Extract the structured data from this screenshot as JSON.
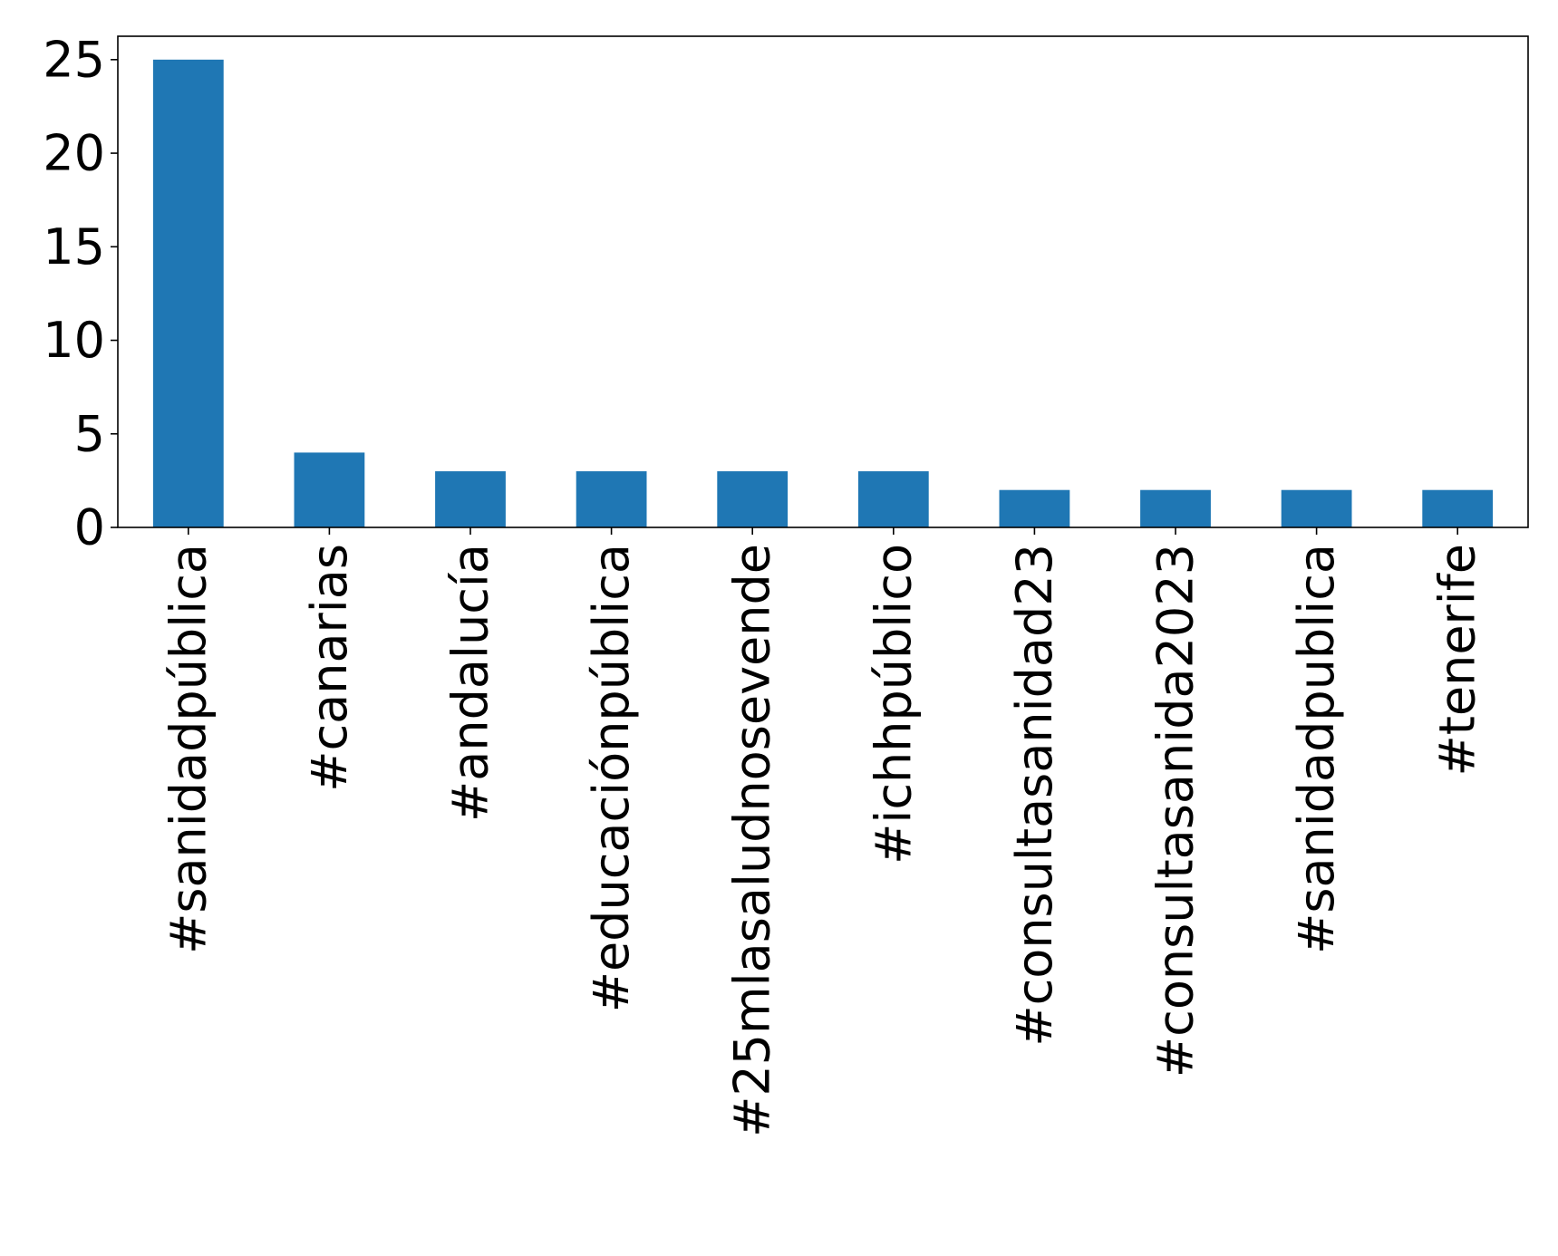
{
  "colors": {
    "bar": "#1f77b4",
    "axis": "#000000",
    "background": "#ffffff"
  },
  "chart_data": {
    "type": "bar",
    "title": "",
    "xlabel": "",
    "ylabel": "",
    "categories": [
      "#sanidadpública",
      "#canarias",
      "#andalucía",
      "#educaciónpública",
      "#25mlasaludnosevende",
      "#ichhpúblico",
      "#consultasanidad23",
      "#consultasanida2023",
      "#sanidadpublica",
      "#tenerife"
    ],
    "values": [
      25,
      4,
      3,
      3,
      3,
      3,
      2,
      2,
      2,
      2
    ],
    "ylim": [
      0,
      26.25
    ],
    "yticks": [
      0,
      5,
      10,
      15,
      20,
      25
    ],
    "grid": false,
    "legend": "none"
  }
}
